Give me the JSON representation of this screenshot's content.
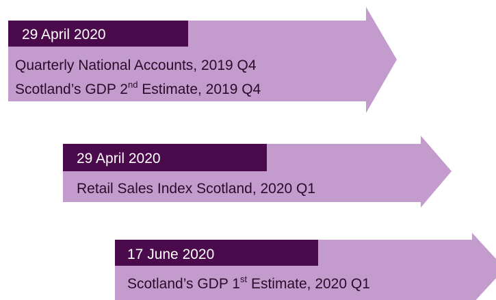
{
  "events": [
    {
      "date": "29 April 2020",
      "lines": [
        [
          "Quarterly National Accounts, 2019 Q4"
        ],
        [
          "Scotland’s GDP 2",
          "nd",
          " Estimate, 2019 Q4"
        ]
      ]
    },
    {
      "date": "29 April 2020",
      "lines": [
        [
          "Retail Sales Index Scotland, 2020 Q1"
        ]
      ]
    },
    {
      "date": "17 June 2020",
      "lines": [
        [
          "Scotland’s GDP 1",
          "st",
          " Estimate, 2020 Q1"
        ]
      ]
    }
  ]
}
